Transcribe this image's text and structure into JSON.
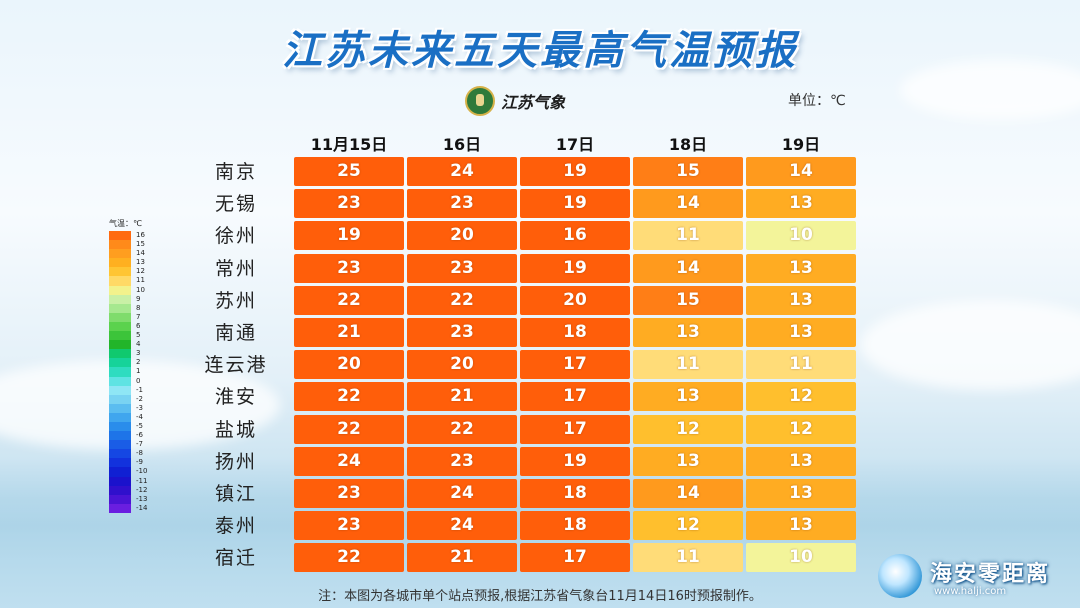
{
  "title": "江苏未来五天最高气温预报",
  "logo_text": "江苏气象",
  "unit": "单位：℃",
  "note": "注：本图为各城市单个站点预报,根据江苏省气象台11月14日16时预报制作。",
  "watermark": {
    "name": "海安零距离",
    "url": "www.halji.com"
  },
  "legend": {
    "title": "气温：℃",
    "entries": [
      {
        "label": "16",
        "color": "#ff6a10"
      },
      {
        "label": "15",
        "color": "#ff8a1a"
      },
      {
        "label": "14",
        "color": "#ff9e1f"
      },
      {
        "label": "13",
        "color": "#ffb020"
      },
      {
        "label": "12",
        "color": "#ffc533"
      },
      {
        "label": "11",
        "color": "#ffd966"
      },
      {
        "label": "10",
        "color": "#f2f28c"
      },
      {
        "label": "9",
        "color": "#c9f0a6"
      },
      {
        "label": "8",
        "color": "#a6e88f"
      },
      {
        "label": "7",
        "color": "#7fdc6c"
      },
      {
        "label": "6",
        "color": "#5bd24d"
      },
      {
        "label": "5",
        "color": "#3cc43a"
      },
      {
        "label": "4",
        "color": "#22b529"
      },
      {
        "label": "3",
        "color": "#10c96e"
      },
      {
        "label": "2",
        "color": "#16d39a"
      },
      {
        "label": "1",
        "color": "#2fdcc0"
      },
      {
        "label": "0",
        "color": "#5fe3e3"
      },
      {
        "label": "-1",
        "color": "#8fe6f5"
      },
      {
        "label": "-2",
        "color": "#79d3f2"
      },
      {
        "label": "-3",
        "color": "#5bbdf0"
      },
      {
        "label": "-4",
        "color": "#40a6ee"
      },
      {
        "label": "-5",
        "color": "#2a8deb"
      },
      {
        "label": "-6",
        "color": "#1e74e8"
      },
      {
        "label": "-7",
        "color": "#1a5de6"
      },
      {
        "label": "-8",
        "color": "#1547e3"
      },
      {
        "label": "-9",
        "color": "#1232dd"
      },
      {
        "label": "-10",
        "color": "#1020d3"
      },
      {
        "label": "-11",
        "color": "#1b12cc"
      },
      {
        "label": "-12",
        "color": "#3010cc"
      },
      {
        "label": "-13",
        "color": "#4a14d4"
      },
      {
        "label": "-14",
        "color": "#6a1ee0"
      }
    ]
  },
  "chart_data": {
    "type": "table",
    "title": "江苏未来五天最高气温预报",
    "columns": [
      "11月15日",
      "16日",
      "17日",
      "18日",
      "19日"
    ],
    "rows": [
      {
        "city": "南京",
        "values": [
          25,
          24,
          19,
          15,
          14
        ]
      },
      {
        "city": "无锡",
        "values": [
          23,
          23,
          19,
          14,
          13
        ]
      },
      {
        "city": "徐州",
        "values": [
          19,
          20,
          16,
          11,
          10
        ]
      },
      {
        "city": "常州",
        "values": [
          23,
          23,
          19,
          14,
          13
        ]
      },
      {
        "city": "苏州",
        "values": [
          22,
          22,
          20,
          15,
          13
        ]
      },
      {
        "city": "南通",
        "values": [
          21,
          23,
          18,
          13,
          13
        ]
      },
      {
        "city": "连云港",
        "values": [
          20,
          20,
          17,
          11,
          11
        ]
      },
      {
        "city": "淮安",
        "values": [
          22,
          21,
          17,
          13,
          12
        ]
      },
      {
        "city": "盐城",
        "values": [
          22,
          22,
          17,
          12,
          12
        ]
      },
      {
        "city": "扬州",
        "values": [
          24,
          23,
          19,
          13,
          13
        ]
      },
      {
        "city": "镇江",
        "values": [
          23,
          24,
          18,
          14,
          13
        ]
      },
      {
        "city": "泰州",
        "values": [
          23,
          24,
          18,
          12,
          13
        ]
      },
      {
        "city": "宿迁",
        "values": [
          22,
          21,
          17,
          11,
          10
        ]
      }
    ]
  }
}
